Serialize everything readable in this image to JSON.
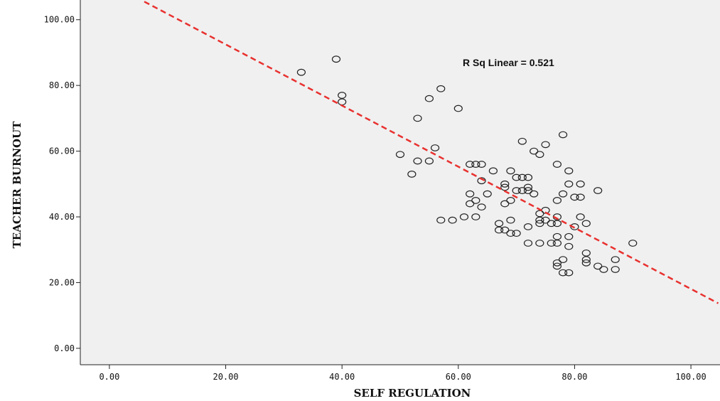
{
  "chart_data": {
    "type": "scatter",
    "title": "",
    "xlabel": "SELF REGULATION",
    "ylabel": "TEACHER BURNOUT",
    "xlim": [
      -5,
      105
    ],
    "ylim": [
      -5,
      106
    ],
    "x_ticks": [
      "0.00",
      "20.00",
      "40.00",
      "60.00",
      "80.00",
      "100.00"
    ],
    "y_ticks": [
      "0.00",
      "20.00",
      "40.00",
      "60.00",
      "80.00",
      "100.00"
    ],
    "grid": false,
    "annotation": "R Sq Linear = 0.521",
    "fit_line": {
      "type": "linear",
      "x": [
        6,
        104.7
      ],
      "y": [
        105.5,
        13.7
      ],
      "color": "#e8312f"
    },
    "plot_background": "#f0f0f0",
    "marker": "open-circle",
    "points": [
      [
        33,
        84
      ],
      [
        39,
        88
      ],
      [
        40,
        77
      ],
      [
        40,
        75
      ],
      [
        53,
        70
      ],
      [
        55,
        76
      ],
      [
        57,
        79
      ],
      [
        60,
        73
      ],
      [
        50,
        59
      ],
      [
        52,
        53
      ],
      [
        53,
        57
      ],
      [
        55,
        57
      ],
      [
        56,
        61
      ],
      [
        57,
        39
      ],
      [
        59,
        39
      ],
      [
        61,
        40
      ],
      [
        62,
        56
      ],
      [
        63,
        56
      ],
      [
        64,
        56
      ],
      [
        62,
        47
      ],
      [
        62,
        44
      ],
      [
        63,
        45
      ],
      [
        63,
        40
      ],
      [
        64,
        43
      ],
      [
        64,
        51
      ],
      [
        65,
        47
      ],
      [
        66,
        54
      ],
      [
        67,
        38
      ],
      [
        67,
        36
      ],
      [
        68,
        36
      ],
      [
        68,
        44
      ],
      [
        68,
        49
      ],
      [
        68,
        50
      ],
      [
        69,
        54
      ],
      [
        69,
        45
      ],
      [
        69,
        39
      ],
      [
        69,
        35
      ],
      [
        70,
        52
      ],
      [
        70,
        48
      ],
      [
        70,
        35
      ],
      [
        71,
        63
      ],
      [
        71,
        52
      ],
      [
        71,
        48
      ],
      [
        72,
        52
      ],
      [
        72,
        49
      ],
      [
        72,
        48
      ],
      [
        72,
        37
      ],
      [
        72,
        32
      ],
      [
        73,
        60
      ],
      [
        73,
        47
      ],
      [
        74,
        59
      ],
      [
        74,
        41
      ],
      [
        74,
        39
      ],
      [
        74,
        38
      ],
      [
        74,
        32
      ],
      [
        75,
        62
      ],
      [
        75,
        42
      ],
      [
        75,
        39
      ],
      [
        76,
        38
      ],
      [
        76,
        32
      ],
      [
        77,
        56
      ],
      [
        77,
        45
      ],
      [
        77,
        40
      ],
      [
        77,
        38
      ],
      [
        77,
        34
      ],
      [
        77,
        32
      ],
      [
        77,
        26
      ],
      [
        77,
        25
      ],
      [
        78,
        65
      ],
      [
        78,
        47
      ],
      [
        78,
        27
      ],
      [
        78,
        23
      ],
      [
        79,
        54
      ],
      [
        79,
        50
      ],
      [
        79,
        34
      ],
      [
        79,
        31
      ],
      [
        79,
        23
      ],
      [
        80,
        46
      ],
      [
        80,
        37
      ],
      [
        81,
        50
      ],
      [
        81,
        46
      ],
      [
        81,
        40
      ],
      [
        82,
        38
      ],
      [
        82,
        29
      ],
      [
        82,
        27
      ],
      [
        82,
        26
      ],
      [
        84,
        48
      ],
      [
        84,
        25
      ],
      [
        85,
        24
      ],
      [
        87,
        27
      ],
      [
        87,
        24
      ],
      [
        90,
        32
      ]
    ]
  }
}
